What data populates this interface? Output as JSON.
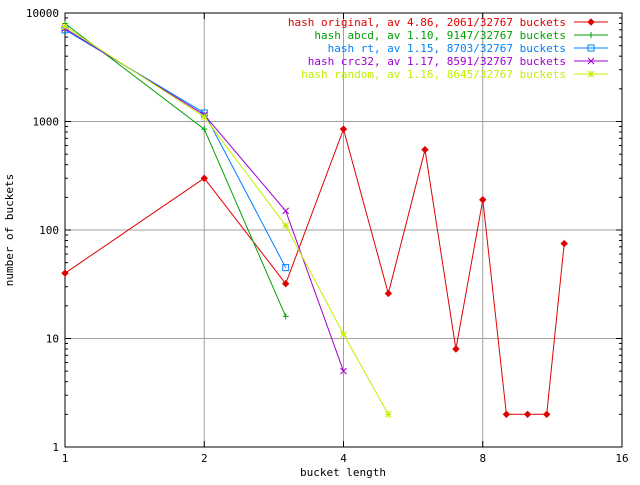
{
  "chart_data": {
    "type": "line",
    "title": "",
    "xlabel": "bucket length",
    "ylabel": "number of buckets",
    "x_scale": "log2",
    "y_scale": "log10",
    "xlim": [
      1,
      16
    ],
    "ylim": [
      1,
      10000
    ],
    "x_ticks": [
      1,
      2,
      4,
      8,
      16
    ],
    "x_tick_labels": [
      "1",
      "2",
      "4",
      "8",
      "16"
    ],
    "y_ticks": [
      1,
      10,
      100,
      1000,
      10000
    ],
    "y_tick_labels": [
      "1",
      "10",
      "100",
      "1000",
      "10000"
    ],
    "grid": true,
    "legend_position": "top-right",
    "series": [
      {
        "name": "hash original, av 4.86, 2061/32767 buckets",
        "color": "#e00000",
        "marker": "diamond",
        "x": [
          1,
          2,
          3,
          4,
          5,
          6,
          7,
          8,
          9,
          10,
          11,
          12
        ],
        "y": [
          40,
          300,
          32,
          850,
          26,
          550,
          8,
          190,
          2,
          2,
          2,
          75
        ]
      },
      {
        "name": "hash abcd, av 1.10, 9147/32767 buckets",
        "color": "#00a000",
        "marker": "plus",
        "x": [
          1,
          2,
          3
        ],
        "y": [
          8000,
          850,
          16
        ]
      },
      {
        "name": "hash rt, av 1.15, 8703/32767 buckets",
        "color": "#0080ff",
        "marker": "square",
        "x": [
          1,
          2,
          3
        ],
        "y": [
          7000,
          1200,
          45
        ]
      },
      {
        "name": "hash crc32, av 1.17, 8591/32767 buckets",
        "color": "#a000d0",
        "marker": "x",
        "x": [
          1,
          2,
          3,
          4
        ],
        "y": [
          7200,
          1150,
          150,
          5
        ]
      },
      {
        "name": "hash random, av 1.16, 8645/32767 buckets",
        "color": "#c0f000",
        "marker": "star",
        "x": [
          1,
          2,
          3,
          4,
          5
        ],
        "y": [
          7500,
          1100,
          110,
          11,
          2
        ]
      }
    ]
  }
}
